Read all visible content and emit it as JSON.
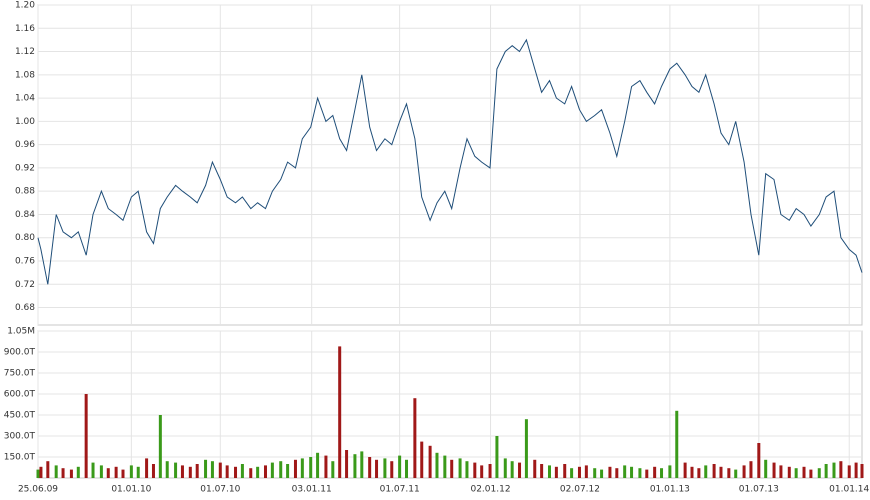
{
  "chart_data": {
    "type": "line",
    "x": [
      "25.06.09",
      "01.07.09",
      "15.07.09",
      "01.08.09",
      "15.08.09",
      "01.09.09",
      "15.09.09",
      "01.10.09",
      "15.10.09",
      "01.11.09",
      "15.11.09",
      "01.12.09",
      "15.12.09",
      "01.01.10",
      "15.01.10",
      "01.02.10",
      "15.02.10",
      "01.03.10",
      "15.03.10",
      "01.04.10",
      "15.04.10",
      "01.05.10",
      "15.05.10",
      "01.06.10",
      "15.06.10",
      "01.07.10",
      "15.07.10",
      "01.08.10",
      "15.08.10",
      "01.09.10",
      "15.09.10",
      "01.10.10",
      "15.10.10",
      "01.11.10",
      "15.11.10",
      "01.12.10",
      "15.12.10",
      "01.01.11",
      "15.01.11",
      "01.02.11",
      "15.02.11",
      "01.03.11",
      "15.03.11",
      "01.04.11",
      "15.04.11",
      "01.05.11",
      "15.05.11",
      "01.06.11",
      "15.06.11",
      "01.07.11",
      "15.07.11",
      "01.08.11",
      "15.08.11",
      "01.09.11",
      "15.09.11",
      "01.10.11",
      "15.10.11",
      "01.11.11",
      "15.11.11",
      "01.12.11",
      "15.12.11",
      "01.01.12",
      "15.01.12",
      "01.02.12",
      "15.02.12",
      "01.03.12",
      "15.03.12",
      "01.04.12",
      "15.04.12",
      "01.05.12",
      "15.05.12",
      "01.06.12",
      "15.06.12",
      "01.07.12",
      "15.07.12",
      "01.08.12",
      "15.08.12",
      "01.09.12",
      "15.09.12",
      "01.10.12",
      "15.10.12",
      "01.11.12",
      "15.11.12",
      "01.12.12",
      "15.12.12",
      "01.01.13",
      "15.01.13",
      "01.02.13",
      "15.02.13",
      "01.03.13",
      "15.03.13",
      "01.04.13",
      "15.04.13",
      "01.05.13",
      "15.05.13",
      "01.06.13",
      "15.06.13",
      "01.07.13",
      "15.07.13",
      "01.08.13",
      "15.08.13",
      "01.09.13",
      "15.09.13",
      "01.10.13",
      "15.10.13",
      "01.11.13",
      "15.11.13",
      "01.12.13",
      "15.12.13",
      "01.01.14",
      "15.01.14",
      "27.01.14"
    ],
    "xlim": [
      "25.06.09",
      "27.01.14"
    ],
    "xticks": [
      "25.06.09",
      "01.01.10",
      "01.07.10",
      "03.01.11",
      "01.07.11",
      "02.01.12",
      "02.07.12",
      "01.01.13",
      "01.07.13",
      "01.01.14"
    ],
    "series": [
      {
        "color": "#1f4e79",
        "values": [
          0.8,
          0.78,
          0.72,
          0.84,
          0.81,
          0.8,
          0.81,
          0.77,
          0.84,
          0.88,
          0.85,
          0.84,
          0.83,
          0.87,
          0.88,
          0.81,
          0.79,
          0.85,
          0.87,
          0.89,
          0.88,
          0.87,
          0.86,
          0.89,
          0.93,
          0.9,
          0.87,
          0.86,
          0.87,
          0.85,
          0.86,
          0.85,
          0.88,
          0.9,
          0.93,
          0.92,
          0.97,
          0.99,
          1.04,
          1.0,
          1.01,
          0.97,
          0.95,
          1.02,
          1.08,
          0.99,
          0.95,
          0.97,
          0.96,
          1.0,
          1.03,
          0.97,
          0.87,
          0.83,
          0.86,
          0.88,
          0.85,
          0.92,
          0.97,
          0.94,
          0.93,
          0.92,
          1.09,
          1.12,
          1.13,
          1.12,
          1.14,
          1.09,
          1.05,
          1.07,
          1.04,
          1.03,
          1.06,
          1.02,
          1.0,
          1.01,
          1.02,
          0.98,
          0.94,
          1.0,
          1.06,
          1.07,
          1.05,
          1.03,
          1.06,
          1.09,
          1.1,
          1.08,
          1.06,
          1.05,
          1.08,
          1.03,
          0.98,
          0.96,
          1.0,
          0.93,
          0.84,
          0.77,
          0.91,
          0.9,
          0.84,
          0.83,
          0.85,
          0.84,
          0.82,
          0.84,
          0.87,
          0.88,
          0.8,
          0.78,
          0.77,
          0.74
        ]
      }
    ],
    "ylim": [
      0.65,
      1.2
    ],
    "yticks": [
      0.68,
      0.72,
      0.76,
      {
        "value": 0.8,
        "label": "0.80"
      },
      0.84,
      0.88,
      0.92,
      0.96,
      {
        "value": 1.0,
        "label": "1.00"
      },
      1.04,
      1.08,
      1.12,
      1.16,
      {
        "value": 1.2,
        "label": "1.20"
      }
    ],
    "grid": true,
    "volume": {
      "type": "bar",
      "up_color": "#3a9a1a",
      "down_color": "#a01818",
      "values": [
        60000,
        80000,
        120000,
        90000,
        70000,
        60000,
        80000,
        600000,
        110000,
        90000,
        70000,
        80000,
        60000,
        90000,
        80000,
        140000,
        100000,
        450000,
        120000,
        110000,
        90000,
        80000,
        100000,
        130000,
        120000,
        110000,
        90000,
        80000,
        100000,
        70000,
        80000,
        90000,
        110000,
        120000,
        100000,
        130000,
        140000,
        150000,
        180000,
        160000,
        120000,
        940000,
        200000,
        170000,
        190000,
        150000,
        130000,
        140000,
        120000,
        160000,
        130000,
        570000,
        260000,
        230000,
        180000,
        160000,
        130000,
        140000,
        120000,
        110000,
        90000,
        100000,
        300000,
        140000,
        120000,
        110000,
        420000,
        130000,
        100000,
        90000,
        80000,
        100000,
        70000,
        80000,
        90000,
        70000,
        60000,
        80000,
        70000,
        90000,
        80000,
        70000,
        60000,
        80000,
        70000,
        90000,
        480000,
        110000,
        80000,
        70000,
        90000,
        100000,
        80000,
        70000,
        60000,
        90000,
        120000,
        250000,
        130000,
        110000,
        90000,
        80000,
        70000,
        80000,
        60000,
        70000,
        100000,
        110000,
        120000,
        90000,
        110000,
        100000
      ],
      "ylim": [
        0,
        1050000
      ],
      "yticks": [
        {
          "value": 150000,
          "label": "150.0T"
        },
        {
          "value": 300000,
          "label": "300.0T"
        },
        {
          "value": 450000,
          "label": "450.0T"
        },
        {
          "value": 600000,
          "label": "600.0T"
        },
        {
          "value": 750000,
          "label": "750.0T"
        },
        {
          "value": 900000,
          "label": "900.0T"
        },
        {
          "value": 1050000,
          "label": "1.05M"
        }
      ]
    }
  }
}
